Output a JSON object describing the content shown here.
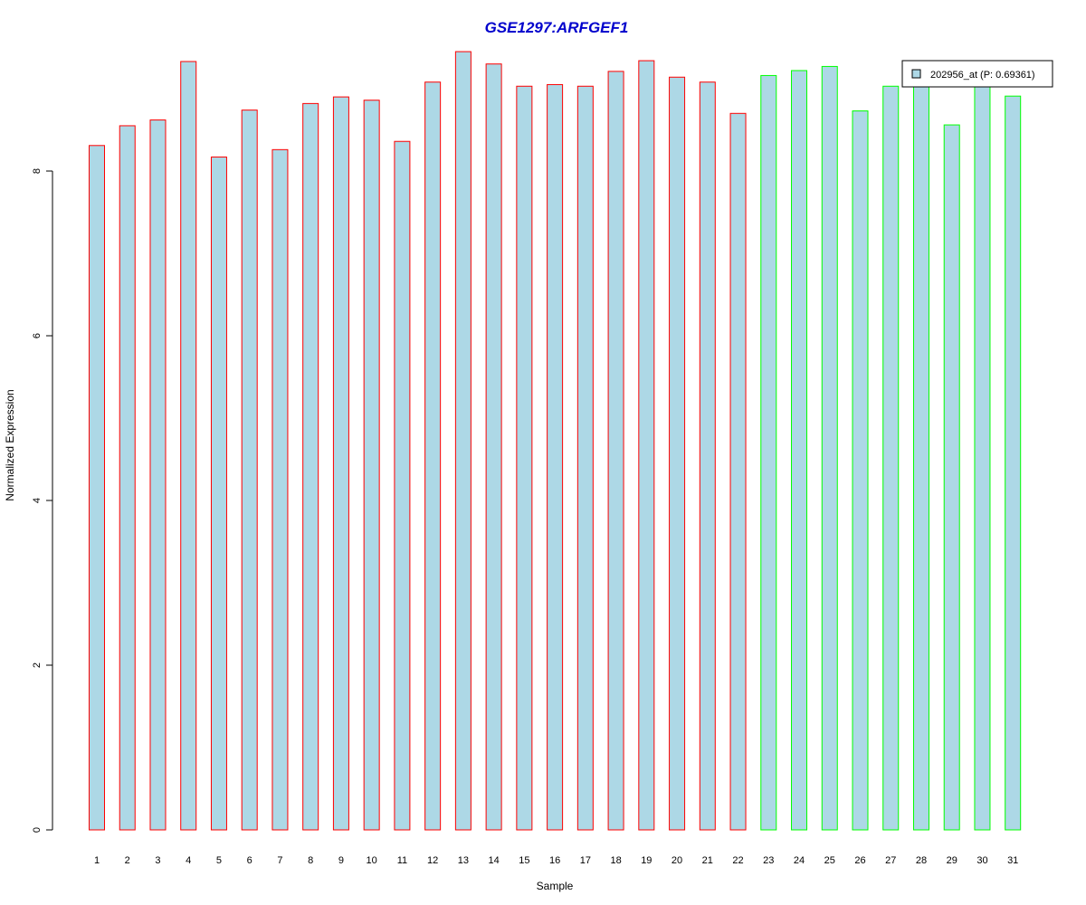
{
  "chart_data": {
    "type": "bar",
    "title": "GSE1297:ARFGEF1",
    "xlabel": "Sample",
    "ylabel": "Normalized Expression",
    "categories": [
      "1",
      "2",
      "3",
      "4",
      "5",
      "6",
      "7",
      "8",
      "9",
      "10",
      "11",
      "12",
      "13",
      "14",
      "15",
      "16",
      "17",
      "18",
      "19",
      "20",
      "21",
      "22",
      "23",
      "24",
      "25",
      "26",
      "27",
      "28",
      "29",
      "30",
      "31"
    ],
    "values": [
      8.31,
      8.55,
      8.62,
      9.33,
      8.17,
      8.74,
      8.26,
      8.82,
      8.9,
      8.86,
      8.36,
      9.08,
      9.45,
      9.3,
      9.03,
      9.05,
      9.03,
      9.21,
      9.34,
      9.14,
      9.08,
      8.7,
      9.16,
      9.22,
      9.27,
      8.73,
      9.03,
      9.1,
      8.56,
      9.1,
      8.91
    ],
    "groups": [
      "red",
      "red",
      "red",
      "red",
      "red",
      "red",
      "red",
      "red",
      "red",
      "red",
      "red",
      "red",
      "red",
      "red",
      "red",
      "red",
      "red",
      "red",
      "red",
      "red",
      "red",
      "red",
      "green",
      "green",
      "green",
      "green",
      "green",
      "green",
      "green",
      "green",
      "green"
    ],
    "yticks": [
      0,
      2,
      4,
      6,
      8
    ],
    "ylim": [
      0,
      9.45
    ],
    "grid": false,
    "legend": {
      "placement": "top-right",
      "label": "202956_at (P: 0.69361)"
    }
  },
  "colors": {
    "bar_fill": "#add8e6",
    "group1_border": "#ff0000",
    "group2_border": "#00ff00",
    "title": "#0000cc",
    "axis": "#000000"
  }
}
